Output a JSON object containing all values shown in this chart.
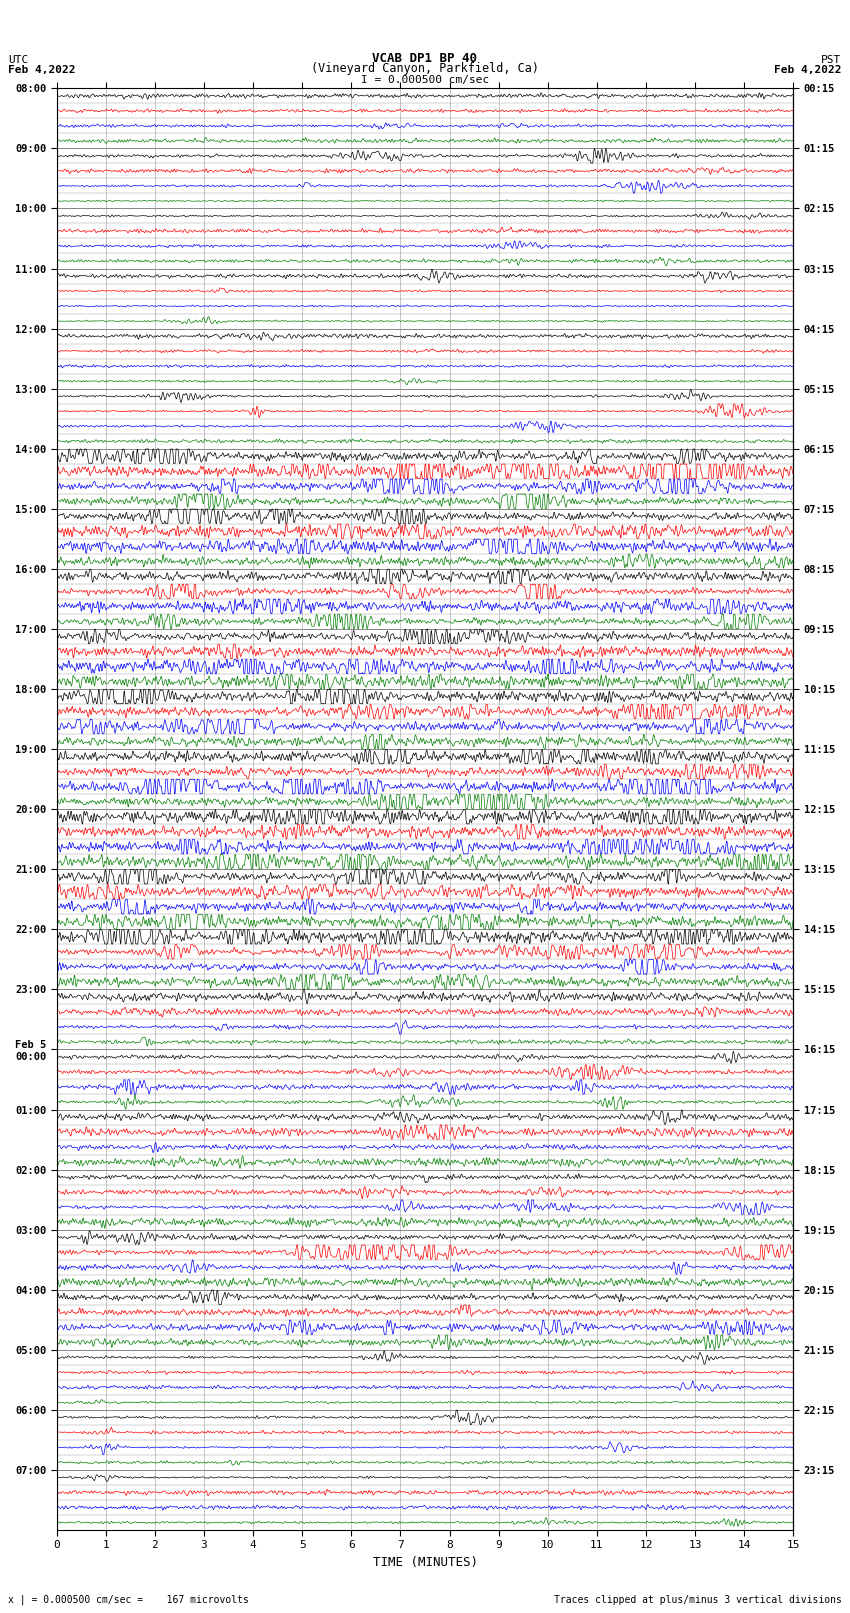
{
  "title_line1": "VCAB DP1 BP 40",
  "title_line2": "(Vineyard Canyon, Parkfield, Ca)",
  "scale_text": "I = 0.000500 cm/sec",
  "utc_label": "UTC",
  "utc_date": "Feb 4,2022",
  "pst_label": "PST",
  "pst_date": "Feb 4,2022",
  "xlabel": "TIME (MINUTES)",
  "footer_left": "x | = 0.000500 cm/sec =    167 microvolts",
  "footer_right": "Traces clipped at plus/minus 3 vertical divisions",
  "xlim": [
    0,
    15
  ],
  "xticks": [
    0,
    1,
    2,
    3,
    4,
    5,
    6,
    7,
    8,
    9,
    10,
    11,
    12,
    13,
    14,
    15
  ],
  "trace_colors_cycle": [
    "black",
    "red",
    "blue",
    "green"
  ],
  "utc_hour_labels": [
    "08:00",
    "09:00",
    "10:00",
    "11:00",
    "12:00",
    "13:00",
    "14:00",
    "15:00",
    "16:00",
    "17:00",
    "18:00",
    "19:00",
    "20:00",
    "21:00",
    "22:00",
    "23:00",
    "Feb 5\n00:00",
    "01:00",
    "02:00",
    "03:00",
    "04:00",
    "05:00",
    "06:00",
    "07:00"
  ],
  "pst_hour_labels": [
    "00:15",
    "01:15",
    "02:15",
    "03:15",
    "04:15",
    "05:15",
    "06:15",
    "07:15",
    "08:15",
    "09:15",
    "10:15",
    "11:15",
    "12:15",
    "13:15",
    "14:15",
    "15:15",
    "16:15",
    "17:15",
    "18:15",
    "19:15",
    "20:15",
    "21:15",
    "22:15",
    "23:15"
  ],
  "n_hours": 24,
  "traces_per_hour": 4,
  "fig_width": 8.5,
  "fig_height": 16.13,
  "bg_color": "white",
  "grid_color": "#999999",
  "lw_trace": 0.5
}
